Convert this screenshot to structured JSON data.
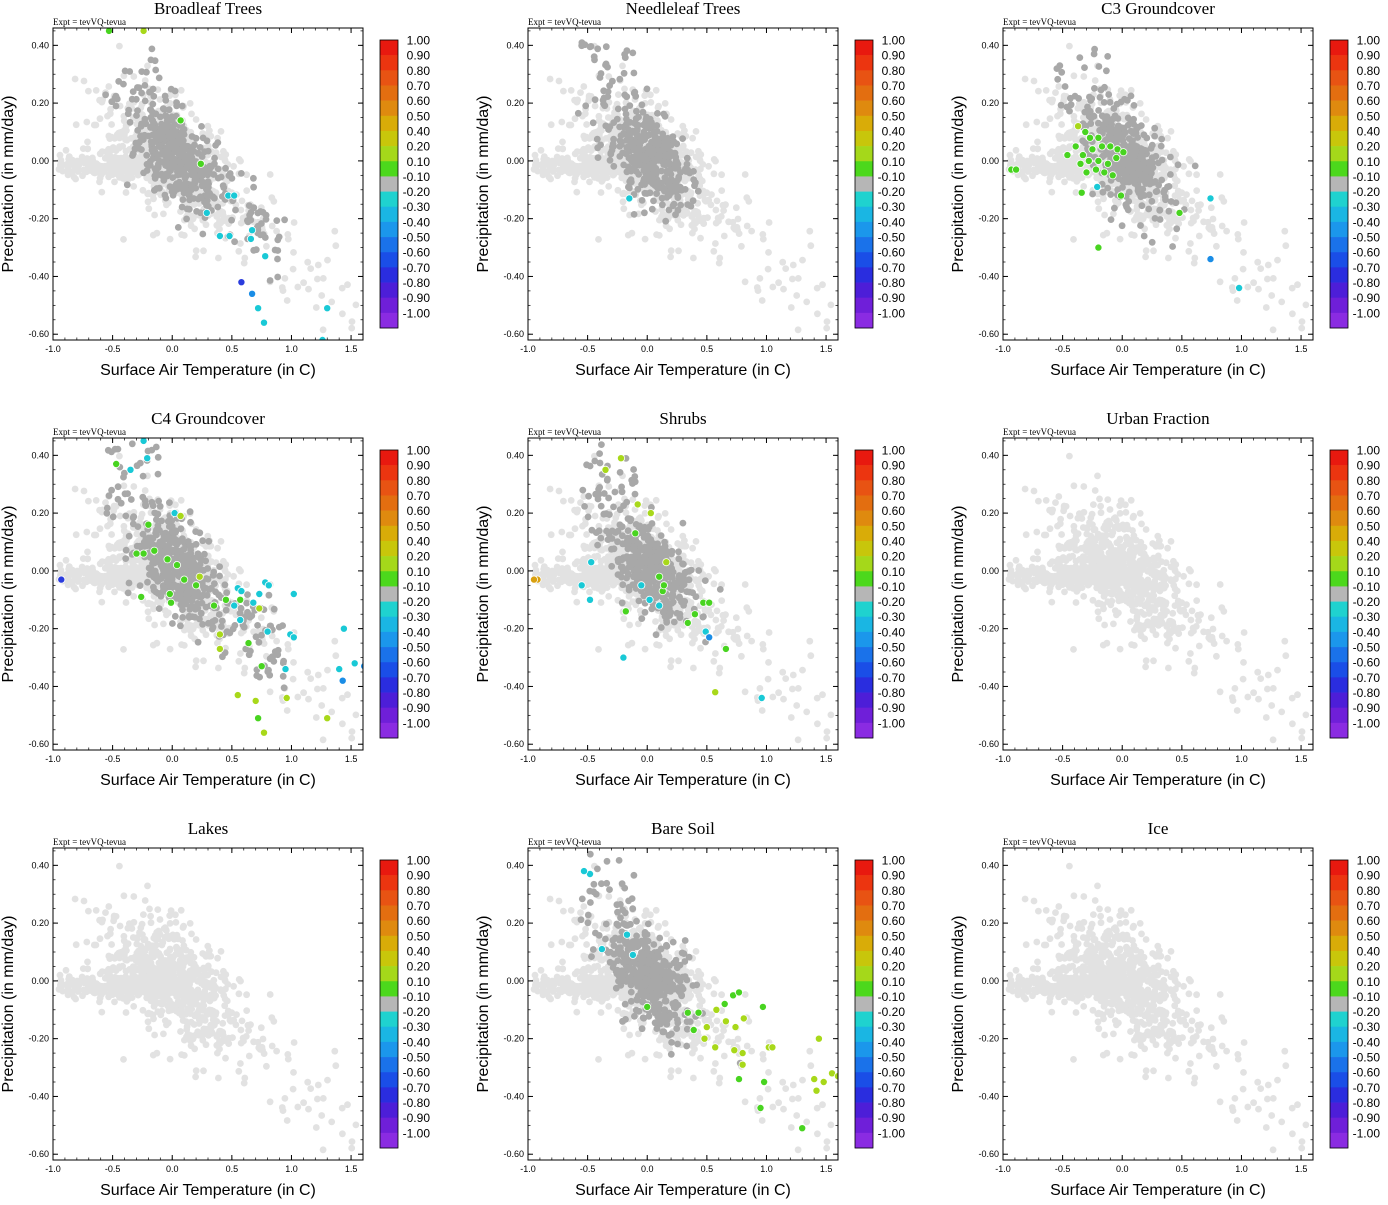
{
  "figure": {
    "common": {
      "xlabel": "Surface Air Temperature (in C)",
      "ylabel": "Precipitation (in mm/day)",
      "experiment": "Expt = tevVQ-tevua",
      "xlim": [
        -1.0,
        1.6
      ],
      "ylim": [
        -0.62,
        0.46
      ],
      "xticks": [
        "-1.0",
        "-0.5",
        "0.0",
        "0.5",
        "1.0",
        "1.5"
      ],
      "yticks": [
        "-0.60",
        "-0.40",
        "-0.20",
        "0.00",
        "0.20",
        "0.40"
      ],
      "colorbar": {
        "labels": [
          "1.00",
          "0.90",
          "0.80",
          "0.70",
          "0.60",
          "0.50",
          "0.40",
          "0.20",
          "0.10",
          "-0.10",
          "-0.20",
          "-0.30",
          "-0.40",
          "-0.50",
          "-0.60",
          "-0.70",
          "-0.80",
          "-0.90",
          "-1.00"
        ],
        "colors": [
          "#e8190f",
          "#ec3510",
          "#e85313",
          "#e36e10",
          "#df8a0f",
          "#d9ac08",
          "#c8c60b",
          "#a5d81a",
          "#4cd81c",
          "#b6b6b6",
          "#1fd2cf",
          "#1ab6e3",
          "#1b97eb",
          "#1a72ea",
          "#1a4ee7",
          "#2a2ddf",
          "#4d1ed8",
          "#6f1fd9",
          "#8a2be2"
        ]
      },
      "point_colors": {
        "background": "#e2e2e2",
        "neutral": "#a8a8a8",
        "green": "#48d420",
        "lime": "#a8d81a",
        "cyan": "#19c9d6",
        "blue": "#1a8de6",
        "darkblue": "#2a3cdd",
        "orange": "#d9a010"
      }
    }
  },
  "chart_data": [
    {
      "type": "scatter",
      "title": "Broadleaf Trees",
      "experiment": "Expt = tevVQ-tevua",
      "xlabel": "Surface Air Temperature (in C)",
      "ylabel": "Precipitation (in mm/day)",
      "xlim": [
        -1.0,
        1.6
      ],
      "ylim": [
        -0.62,
        0.46
      ],
      "gray_cloud": "wide",
      "points": [
        {
          "x": -0.53,
          "y": 0.45,
          "v": 0.1
        },
        {
          "x": -0.24,
          "y": 0.45,
          "v": 0.4
        },
        {
          "x": 0.07,
          "y": 0.14,
          "v": 0.1
        },
        {
          "x": 0.24,
          "y": -0.01,
          "v": 0.1
        },
        {
          "x": 0.47,
          "y": -0.12,
          "v": -0.2
        },
        {
          "x": 0.52,
          "y": -0.12,
          "v": -0.2
        },
        {
          "x": 0.29,
          "y": -0.18,
          "v": -0.2
        },
        {
          "x": 0.4,
          "y": -0.26,
          "v": -0.3
        },
        {
          "x": 0.48,
          "y": -0.26,
          "v": -0.3
        },
        {
          "x": 0.67,
          "y": -0.24,
          "v": -0.2
        },
        {
          "x": 0.66,
          "y": -0.27,
          "v": -0.3
        },
        {
          "x": 0.78,
          "y": -0.33,
          "v": -0.2
        },
        {
          "x": 0.58,
          "y": -0.42,
          "v": -0.7
        },
        {
          "x": 0.67,
          "y": -0.46,
          "v": -0.4
        },
        {
          "x": 0.72,
          "y": -0.51,
          "v": -0.2
        },
        {
          "x": 0.77,
          "y": -0.56,
          "v": -0.2
        },
        {
          "x": 1.3,
          "y": -0.51,
          "v": -0.3
        },
        {
          "x": 1.26,
          "y": -0.62,
          "v": -0.2
        }
      ]
    },
    {
      "type": "scatter",
      "title": "Needleleaf Trees",
      "experiment": "Expt = tevVQ-tevua",
      "xlabel": "Surface Air Temperature (in C)",
      "ylabel": "Precipitation (in mm/day)",
      "xlim": [
        -1.0,
        1.6
      ],
      "ylim": [
        -0.62,
        0.46
      ],
      "gray_cloud": "center",
      "points": [
        {
          "x": -0.15,
          "y": -0.13,
          "v": -0.3
        }
      ]
    },
    {
      "type": "scatter",
      "title": "C3 Groundcover",
      "experiment": "Expt = tevVQ-tevua",
      "xlabel": "Surface Air Temperature (in C)",
      "ylabel": "Precipitation (in mm/day)",
      "xlim": [
        -1.0,
        1.6
      ],
      "ylim": [
        -0.62,
        0.46
      ],
      "gray_cloud": "center",
      "points": [
        {
          "x": -0.37,
          "y": 0.12,
          "v": 0.4
        },
        {
          "x": -0.31,
          "y": 0.1,
          "v": 0.2
        },
        {
          "x": -0.27,
          "y": 0.08,
          "v": 0.1
        },
        {
          "x": -0.2,
          "y": 0.08,
          "v": 0.2
        },
        {
          "x": -0.39,
          "y": 0.05,
          "v": 0.1
        },
        {
          "x": -0.46,
          "y": 0.02,
          "v": 0.1
        },
        {
          "x": -0.33,
          "y": 0.02,
          "v": 0.2
        },
        {
          "x": -0.25,
          "y": 0.04,
          "v": 0.1
        },
        {
          "x": -0.17,
          "y": 0.05,
          "v": 0.1
        },
        {
          "x": -0.1,
          "y": 0.05,
          "v": 0.1
        },
        {
          "x": -0.04,
          "y": 0.04,
          "v": 0.1
        },
        {
          "x": 0.01,
          "y": 0.03,
          "v": 0.1
        },
        {
          "x": -0.28,
          "y": 0.0,
          "v": 0.2
        },
        {
          "x": -0.2,
          "y": 0.0,
          "v": 0.1
        },
        {
          "x": -0.12,
          "y": -0.01,
          "v": 0.2
        },
        {
          "x": -0.05,
          "y": 0.01,
          "v": 0.1
        },
        {
          "x": -0.3,
          "y": -0.04,
          "v": 0.1
        },
        {
          "x": -0.22,
          "y": -0.03,
          "v": 0.2
        },
        {
          "x": -0.15,
          "y": -0.04,
          "v": 0.1
        },
        {
          "x": -0.08,
          "y": -0.05,
          "v": 0.1
        },
        {
          "x": -0.35,
          "y": -0.01,
          "v": 0.1
        },
        {
          "x": -0.93,
          "y": -0.03,
          "v": 0.2
        },
        {
          "x": -0.89,
          "y": -0.03,
          "v": 0.1
        },
        {
          "x": -0.34,
          "y": -0.11,
          "v": 0.2
        },
        {
          "x": -0.21,
          "y": -0.09,
          "v": -0.3
        },
        {
          "x": -0.01,
          "y": -0.12,
          "v": 0.1
        },
        {
          "x": 0.48,
          "y": -0.18,
          "v": 0.1
        },
        {
          "x": 0.74,
          "y": -0.13,
          "v": -0.3
        },
        {
          "x": -0.2,
          "y": -0.3,
          "v": 0.1
        },
        {
          "x": 0.74,
          "y": -0.34,
          "v": -0.5
        },
        {
          "x": 0.98,
          "y": -0.44,
          "v": -0.3
        }
      ]
    },
    {
      "type": "scatter",
      "title": "C4 Groundcover",
      "experiment": "Expt = tevVQ-tevua",
      "xlabel": "Surface Air Temperature (in C)",
      "ylabel": "Precipitation (in mm/day)",
      "xlim": [
        -1.0,
        1.6
      ],
      "ylim": [
        -0.62,
        0.46
      ],
      "gray_cloud": "wide",
      "points": [
        {
          "x": -0.24,
          "y": 0.45,
          "v": -0.2
        },
        {
          "x": -0.47,
          "y": 0.37,
          "v": 0.1
        },
        {
          "x": -0.35,
          "y": 0.35,
          "v": -0.3
        },
        {
          "x": -0.21,
          "y": 0.39,
          "v": -0.2
        },
        {
          "x": 0.02,
          "y": 0.2,
          "v": -0.2
        },
        {
          "x": 0.07,
          "y": 0.19,
          "v": 0.4
        },
        {
          "x": -0.2,
          "y": 0.16,
          "v": 0.1
        },
        {
          "x": -0.15,
          "y": 0.07,
          "v": 0.2
        },
        {
          "x": -0.24,
          "y": 0.06,
          "v": 0.1
        },
        {
          "x": -0.3,
          "y": 0.06,
          "v": 0.1
        },
        {
          "x": -0.04,
          "y": 0.04,
          "v": 0.1
        },
        {
          "x": 0.04,
          "y": 0.02,
          "v": 0.2
        },
        {
          "x": 0.1,
          "y": -0.03,
          "v": 0.1
        },
        {
          "x": 0.23,
          "y": -0.02,
          "v": 0.4
        },
        {
          "x": 0.2,
          "y": -0.05,
          "v": 0.1
        },
        {
          "x": -0.93,
          "y": -0.03,
          "v": -0.7
        },
        {
          "x": -0.26,
          "y": -0.09,
          "v": 0.2
        },
        {
          "x": -0.02,
          "y": -0.08,
          "v": 0.1
        },
        {
          "x": -0.01,
          "y": -0.11,
          "v": 0.1
        },
        {
          "x": 0.35,
          "y": -0.12,
          "v": 0.1
        },
        {
          "x": 0.45,
          "y": -0.1,
          "v": 0.2
        },
        {
          "x": 0.52,
          "y": -0.12,
          "v": -0.2
        },
        {
          "x": 0.55,
          "y": -0.06,
          "v": -0.3
        },
        {
          "x": 0.58,
          "y": -0.07,
          "v": -0.2
        },
        {
          "x": 0.57,
          "y": -0.1,
          "v": 0.1
        },
        {
          "x": 0.68,
          "y": -0.11,
          "v": -0.2
        },
        {
          "x": 0.73,
          "y": -0.08,
          "v": -0.3
        },
        {
          "x": 0.78,
          "y": -0.04,
          "v": -0.2
        },
        {
          "x": 0.81,
          "y": -0.05,
          "v": -0.2
        },
        {
          "x": 0.73,
          "y": -0.13,
          "v": 0.4
        },
        {
          "x": 0.57,
          "y": -0.17,
          "v": -0.3
        },
        {
          "x": 0.4,
          "y": -0.22,
          "v": 0.4
        },
        {
          "x": 0.64,
          "y": -0.25,
          "v": 0.1
        },
        {
          "x": 0.8,
          "y": -0.21,
          "v": -0.2
        },
        {
          "x": 0.99,
          "y": -0.22,
          "v": -0.3
        },
        {
          "x": 1.02,
          "y": -0.23,
          "v": -0.3
        },
        {
          "x": 1.02,
          "y": -0.08,
          "v": -0.3
        },
        {
          "x": 0.4,
          "y": -0.27,
          "v": 0.4
        },
        {
          "x": 0.75,
          "y": -0.33,
          "v": 0.2
        },
        {
          "x": 0.95,
          "y": -0.34,
          "v": -0.2
        },
        {
          "x": 1.44,
          "y": -0.2,
          "v": -0.3
        },
        {
          "x": 1.4,
          "y": -0.34,
          "v": -0.3
        },
        {
          "x": 1.43,
          "y": -0.38,
          "v": -0.4
        },
        {
          "x": 1.53,
          "y": -0.32,
          "v": -0.3
        },
        {
          "x": 1.61,
          "y": -0.33,
          "v": -0.4
        },
        {
          "x": 0.55,
          "y": -0.43,
          "v": 0.4
        },
        {
          "x": 0.7,
          "y": -0.45,
          "v": 0.4
        },
        {
          "x": 0.72,
          "y": -0.51,
          "v": 0.1
        },
        {
          "x": 0.77,
          "y": -0.56,
          "v": 0.4
        },
        {
          "x": 0.96,
          "y": -0.44,
          "v": 0.4
        },
        {
          "x": 1.3,
          "y": -0.51,
          "v": 0.4
        }
      ]
    },
    {
      "type": "scatter",
      "title": "Shrubs",
      "experiment": "Expt = tevVQ-tevua",
      "xlabel": "Surface Air Temperature (in C)",
      "ylabel": "Precipitation (in mm/day)",
      "xlim": [
        -1.0,
        1.6
      ],
      "ylim": [
        -0.62,
        0.46
      ],
      "gray_cloud": "center",
      "points": [
        {
          "x": -0.22,
          "y": 0.39,
          "v": 0.4
        },
        {
          "x": -0.35,
          "y": 0.35,
          "v": 0.4
        },
        {
          "x": -0.08,
          "y": 0.23,
          "v": 0.4
        },
        {
          "x": 0.03,
          "y": 0.2,
          "v": 0.4
        },
        {
          "x": -0.1,
          "y": 0.13,
          "v": 0.1
        },
        {
          "x": -0.47,
          "y": 0.03,
          "v": -0.2
        },
        {
          "x": -0.55,
          "y": -0.05,
          "v": -0.2
        },
        {
          "x": -0.92,
          "y": -0.03,
          "v": 0.6
        },
        {
          "x": -0.95,
          "y": -0.03,
          "v": 0.6
        },
        {
          "x": 0.16,
          "y": 0.03,
          "v": 0.4
        },
        {
          "x": 0.1,
          "y": -0.02,
          "v": 0.1
        },
        {
          "x": 0.13,
          "y": -0.07,
          "v": 0.1
        },
        {
          "x": 0.14,
          "y": -0.05,
          "v": 0.2
        },
        {
          "x": -0.05,
          "y": -0.05,
          "v": -0.2
        },
        {
          "x": -0.48,
          "y": -0.1,
          "v": -0.2
        },
        {
          "x": -0.18,
          "y": -0.14,
          "v": 0.1
        },
        {
          "x": 0.02,
          "y": -0.1,
          "v": -0.2
        },
        {
          "x": 0.1,
          "y": -0.12,
          "v": -0.2
        },
        {
          "x": 0.47,
          "y": -0.11,
          "v": 0.1
        },
        {
          "x": 0.52,
          "y": -0.11,
          "v": 0.1
        },
        {
          "x": 0.4,
          "y": -0.15,
          "v": 0.1
        },
        {
          "x": 0.34,
          "y": -0.18,
          "v": 0.1
        },
        {
          "x": 0.49,
          "y": -0.21,
          "v": -0.2
        },
        {
          "x": 0.52,
          "y": -0.23,
          "v": -0.5
        },
        {
          "x": 0.66,
          "y": -0.27,
          "v": 0.1
        },
        {
          "x": -0.2,
          "y": -0.3,
          "v": -0.2
        },
        {
          "x": 0.57,
          "y": -0.42,
          "v": 0.4
        },
        {
          "x": 0.96,
          "y": -0.44,
          "v": -0.3
        }
      ]
    },
    {
      "type": "scatter",
      "title": "Urban Fraction",
      "experiment": "Expt = tevVQ-tevua",
      "xlabel": "Surface Air Temperature (in C)",
      "ylabel": "Precipitation (in mm/day)",
      "xlim": [
        -1.0,
        1.6
      ],
      "ylim": [
        -0.62,
        0.46
      ],
      "gray_cloud": "none",
      "points": []
    },
    {
      "type": "scatter",
      "title": "Lakes",
      "experiment": "Expt = tevVQ-tevua",
      "xlabel": "Surface Air Temperature (in C)",
      "ylabel": "Precipitation (in mm/day)",
      "xlim": [
        -1.0,
        1.6
      ],
      "ylim": [
        -0.62,
        0.46
      ],
      "gray_cloud": "none",
      "points": []
    },
    {
      "type": "scatter",
      "title": "Bare Soil",
      "experiment": "Expt = tevVQ-tevua",
      "xlabel": "Surface Air Temperature (in C)",
      "ylabel": "Precipitation (in mm/day)",
      "xlim": [
        -1.0,
        1.6
      ],
      "ylim": [
        -0.62,
        0.46
      ],
      "gray_cloud": "center",
      "points": [
        {
          "x": -0.48,
          "y": 0.37,
          "v": -0.2
        },
        {
          "x": -0.53,
          "y": 0.38,
          "v": -0.2
        },
        {
          "x": -0.17,
          "y": 0.16,
          "v": -0.2
        },
        {
          "x": -0.38,
          "y": 0.11,
          "v": -0.2
        },
        {
          "x": -0.12,
          "y": 0.09,
          "v": -0.2
        },
        {
          "x": 0.0,
          "y": -0.09,
          "v": 0.1
        },
        {
          "x": 0.34,
          "y": -0.11,
          "v": 0.1
        },
        {
          "x": 0.43,
          "y": -0.11,
          "v": 0.1
        },
        {
          "x": 0.58,
          "y": -0.1,
          "v": 0.4
        },
        {
          "x": 0.65,
          "y": -0.08,
          "v": 0.1
        },
        {
          "x": 0.72,
          "y": -0.05,
          "v": 0.1
        },
        {
          "x": 0.77,
          "y": -0.04,
          "v": 0.1
        },
        {
          "x": 0.66,
          "y": -0.14,
          "v": 0.4
        },
        {
          "x": 0.74,
          "y": -0.16,
          "v": 0.4
        },
        {
          "x": 0.81,
          "y": -0.13,
          "v": 0.4
        },
        {
          "x": 0.5,
          "y": -0.16,
          "v": 0.4
        },
        {
          "x": 0.39,
          "y": -0.17,
          "v": 0.1
        },
        {
          "x": 0.48,
          "y": -0.2,
          "v": 0.4
        },
        {
          "x": 0.57,
          "y": -0.23,
          "v": 0.4
        },
        {
          "x": 0.73,
          "y": -0.24,
          "v": 0.4
        },
        {
          "x": 0.8,
          "y": -0.25,
          "v": 0.4
        },
        {
          "x": 0.97,
          "y": -0.09,
          "v": 0.1
        },
        {
          "x": 1.02,
          "y": -0.23,
          "v": 0.4
        },
        {
          "x": 1.05,
          "y": -0.23,
          "v": 0.4
        },
        {
          "x": 0.8,
          "y": -0.29,
          "v": 0.4
        },
        {
          "x": 0.77,
          "y": -0.34,
          "v": 0.1
        },
        {
          "x": 0.98,
          "y": -0.35,
          "v": 0.1
        },
        {
          "x": 1.44,
          "y": -0.2,
          "v": 0.4
        },
        {
          "x": 1.4,
          "y": -0.34,
          "v": 0.4
        },
        {
          "x": 1.48,
          "y": -0.35,
          "v": 0.4
        },
        {
          "x": 1.42,
          "y": -0.38,
          "v": 0.4
        },
        {
          "x": 1.55,
          "y": -0.32,
          "v": 0.4
        },
        {
          "x": 1.6,
          "y": -0.33,
          "v": 0.4
        },
        {
          "x": 0.95,
          "y": -0.44,
          "v": 0.1
        },
        {
          "x": 1.3,
          "y": -0.51,
          "v": 0.1
        }
      ]
    },
    {
      "type": "scatter",
      "title": "Ice",
      "experiment": "Expt = tevVQ-tevua",
      "xlabel": "Surface Air Temperature (in C)",
      "ylabel": "Precipitation (in mm/day)",
      "xlim": [
        -1.0,
        1.6
      ],
      "ylim": [
        -0.62,
        0.46
      ],
      "gray_cloud": "none",
      "points": []
    }
  ]
}
